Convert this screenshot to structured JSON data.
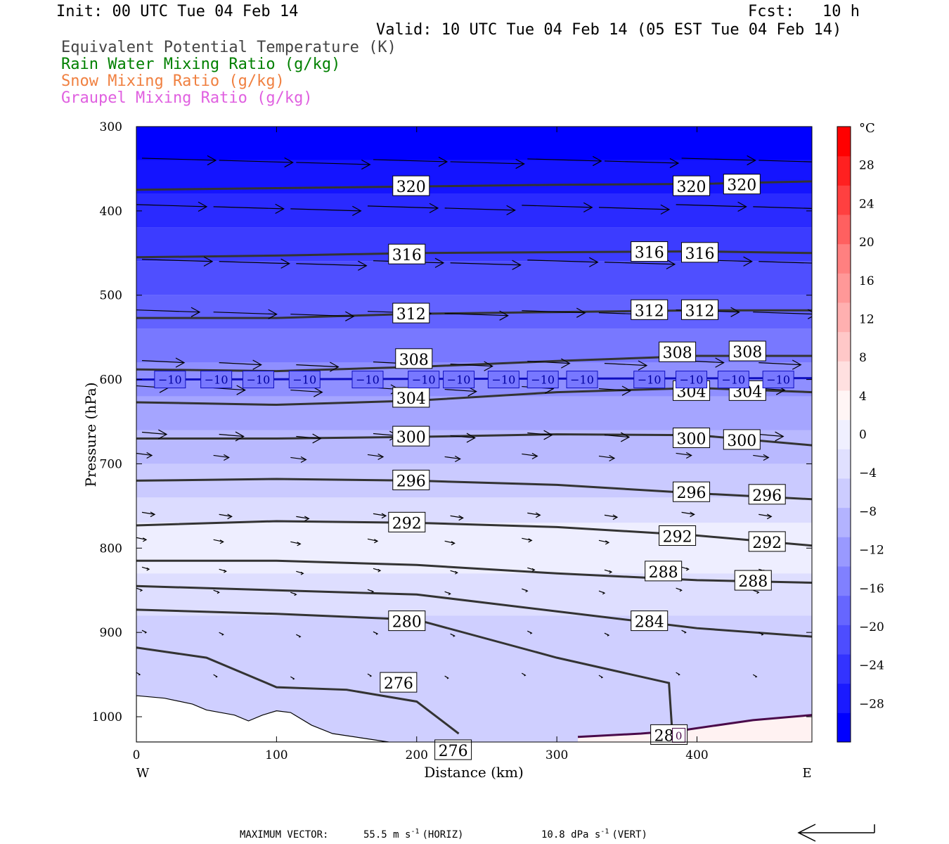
{
  "header": {
    "init": "Init: 00 UTC Tue 04 Feb 14",
    "fcst_label": "Fcst:",
    "fcst_value": "10 h",
    "valid": "Valid: 10 UTC Tue 04 Feb 14 (05 EST Tue 04 Feb 14)"
  },
  "legend": [
    {
      "label": "Equivalent Potential Temperature (K)",
      "color": "#444444"
    },
    {
      "label": "Rain Water Mixing Ratio (g/kg)",
      "color": "#008000"
    },
    {
      "label": "Snow Mixing Ratio (g/kg)",
      "color": "#f08040"
    },
    {
      "label": "Graupel Mixing Ratio (g/kg)",
      "color": "#e060e0"
    }
  ],
  "footer": {
    "max_vector_label": "MAXIMUM VECTOR:",
    "horiz": "55.5 m s",
    "horiz_unit": "(HORIZ)",
    "vert": "10.8 dPa s",
    "vert_unit": "(VERT)",
    "exp": "-1"
  },
  "chart_data": {
    "type": "heatmap",
    "xlabel": "Distance (km)",
    "ylabel": "Pressure (hPa)",
    "xlim": [
      0,
      482
    ],
    "ylim": [
      1030,
      300
    ],
    "x_ticks": [
      0,
      100,
      200,
      300,
      400
    ],
    "y_ticks": [
      300,
      400,
      500,
      600,
      700,
      800,
      900,
      1000
    ],
    "x_left_label": "W",
    "x_right_label": "E",
    "colorbar": {
      "unit": "°C",
      "range": [
        -32,
        32
      ],
      "ticks": [
        28,
        24,
        20,
        16,
        12,
        8,
        4,
        0,
        -4,
        -8,
        -12,
        -16,
        -20,
        -24,
        -28
      ],
      "colors": [
        "#0000ff",
        "#1a1aff",
        "#3333ff",
        "#4d4dff",
        "#6666ff",
        "#8080ff",
        "#9999ff",
        "#b3b3ff",
        "#ccccff",
        "#e0e0ff",
        "#f0f0ff",
        "#fff5f5",
        "#ffe0e0",
        "#ffc8c8",
        "#ffb0b0",
        "#ff9898",
        "#ff8080",
        "#ff6060",
        "#ff4040",
        "#ff2020",
        "#ff0000"
      ]
    },
    "theta_e_contours": [
      {
        "value": 320,
        "x": [
          0,
          100,
          200,
          300,
          400,
          482
        ],
        "p": [
          375,
          373,
          371,
          369,
          368,
          365
        ],
        "labels": [
          {
            "x": 196,
            "p": 371,
            "text": "320"
          },
          {
            "x": 396,
            "p": 371,
            "text": "320"
          },
          {
            "x": 432,
            "p": 369,
            "text": "320"
          }
        ]
      },
      {
        "value": 316,
        "x": [
          0,
          100,
          200,
          300,
          400,
          482
        ],
        "p": [
          455,
          453,
          450,
          449,
          448,
          450
        ],
        "labels": [
          {
            "x": 193,
            "p": 452,
            "text": "316"
          },
          {
            "x": 366,
            "p": 449,
            "text": "316"
          },
          {
            "x": 402,
            "p": 450,
            "text": "316"
          }
        ]
      },
      {
        "value": 312,
        "x": [
          0,
          100,
          200,
          300,
          400,
          482
        ],
        "p": [
          527,
          527,
          522,
          520,
          518,
          518
        ],
        "labels": [
          {
            "x": 196,
            "p": 522,
            "text": "312"
          },
          {
            "x": 366,
            "p": 518,
            "text": "312"
          },
          {
            "x": 402,
            "p": 518,
            "text": "312"
          }
        ]
      },
      {
        "value": 308,
        "x": [
          0,
          100,
          200,
          300,
          400,
          482
        ],
        "p": [
          588,
          590,
          585,
          578,
          572,
          572
        ],
        "labels": [
          {
            "x": 198,
            "p": 576,
            "text": "308"
          },
          {
            "x": 386,
            "p": 568,
            "text": "308"
          },
          {
            "x": 436,
            "p": 567,
            "text": "308"
          }
        ]
      },
      {
        "value": 304,
        "x": [
          0,
          100,
          200,
          300,
          400,
          482
        ],
        "p": [
          627,
          630,
          625,
          615,
          610,
          615
        ],
        "labels": [
          {
            "x": 196,
            "p": 622,
            "text": "304"
          },
          {
            "x": 396,
            "p": 614,
            "text": "304"
          },
          {
            "x": 436,
            "p": 614,
            "text": "304"
          }
        ]
      },
      {
        "value": 300,
        "x": [
          0,
          100,
          200,
          300,
          400,
          482
        ],
        "p": [
          670,
          670,
          668,
          665,
          666,
          678
        ],
        "labels": [
          {
            "x": 196,
            "p": 668,
            "text": "300"
          },
          {
            "x": 396,
            "p": 670,
            "text": "300"
          },
          {
            "x": 432,
            "p": 672,
            "text": "300"
          }
        ]
      },
      {
        "value": 296,
        "x": [
          0,
          100,
          200,
          300,
          400,
          482
        ],
        "p": [
          720,
          718,
          720,
          725,
          735,
          742
        ],
        "labels": [
          {
            "x": 196,
            "p": 720,
            "text": "296"
          },
          {
            "x": 396,
            "p": 734,
            "text": "296"
          },
          {
            "x": 450,
            "p": 737,
            "text": "296"
          }
        ]
      },
      {
        "value": 292,
        "x": [
          0,
          100,
          200,
          300,
          400,
          482
        ],
        "p": [
          773,
          768,
          770,
          775,
          785,
          797
        ],
        "labels": [
          {
            "x": 193,
            "p": 770,
            "text": "292"
          },
          {
            "x": 386,
            "p": 786,
            "text": "292"
          },
          {
            "x": 450,
            "p": 793,
            "text": "292"
          }
        ]
      },
      {
        "value": 288,
        "x": [
          0,
          100,
          200,
          300,
          400,
          482
        ],
        "p": [
          815,
          815,
          820,
          830,
          838,
          841
        ],
        "labels": [
          {
            "x": 376,
            "p": 828,
            "text": "288"
          },
          {
            "x": 440,
            "p": 839,
            "text": "288"
          }
        ]
      },
      {
        "value": 284,
        "x": [
          0,
          100,
          200,
          300,
          400,
          482
        ],
        "p": [
          845,
          850,
          855,
          875,
          895,
          905
        ],
        "labels": [
          {
            "x": 366,
            "p": 887,
            "text": "284"
          }
        ]
      },
      {
        "value": 280,
        "x": [
          0,
          100,
          200,
          300,
          380,
          382
        ],
        "p": [
          873,
          878,
          885,
          930,
          960,
          1010
        ],
        "labels": [
          {
            "x": 193,
            "p": 887,
            "text": "280"
          },
          {
            "x": 380,
            "p": 1022,
            "text": "280"
          }
        ]
      },
      {
        "value": 276,
        "x": [
          0,
          50,
          100,
          150,
          200,
          230
        ],
        "p": [
          918,
          930,
          965,
          968,
          982,
          1020
        ],
        "labels": [
          {
            "x": 187,
            "p": 960,
            "text": "276"
          },
          {
            "x": 226,
            "p": 1040,
            "text": "276"
          }
        ]
      }
    ],
    "isotherm_minus10": {
      "value": -10,
      "label": "−10",
      "p": 600,
      "label_x": [
        24,
        57,
        87,
        120,
        165,
        205,
        230,
        262,
        290,
        318,
        366,
        396,
        426,
        458
      ]
    },
    "freezing_label": "0",
    "max_vector_horiz_ms": 55.5,
    "max_vector_vert_dpas": 10.8
  }
}
